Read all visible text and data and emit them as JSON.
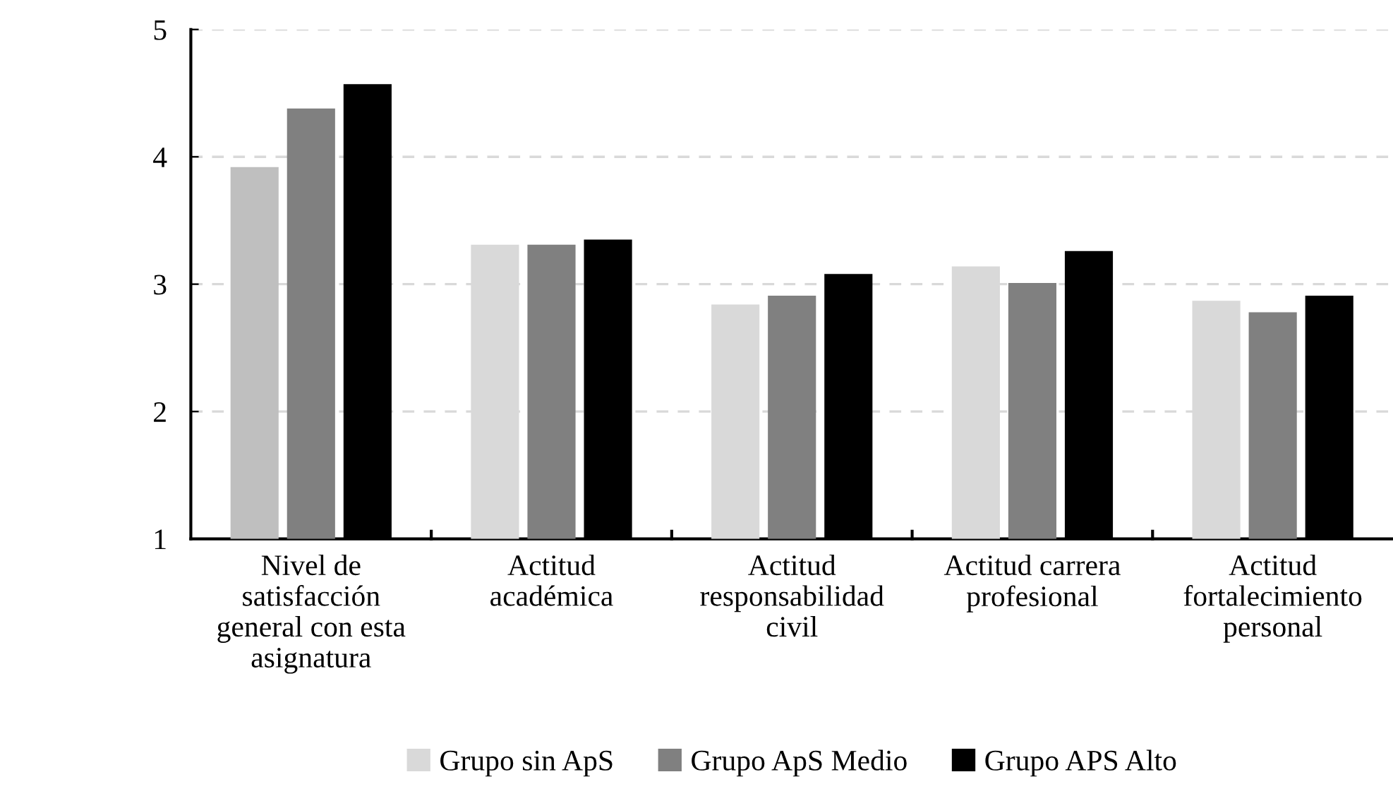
{
  "chart_data": {
    "type": "bar",
    "categories": [
      "Nivel de\nsatisfacción\ngeneral con esta\nasignatura",
      "Actitud\nacadémica",
      "Actitud\nresponsabilidad\ncivil",
      "Actitud carrera\nprofesional",
      "Actitud\nfortalecimiento\npersonal"
    ],
    "series": [
      {
        "name": "Grupo sin ApS",
        "color": "#d9d9d9",
        "colors": [
          "#bfbfbf",
          "#d9d9d9",
          "#d9d9d9",
          "#d9d9d9",
          "#d9d9d9"
        ],
        "values": [
          3.92,
          3.31,
          2.84,
          3.14,
          2.87
        ]
      },
      {
        "name": "Grupo ApS Medio",
        "color": "#808080",
        "values": [
          4.38,
          3.31,
          2.91,
          3.01,
          2.78
        ]
      },
      {
        "name": "Grupo APS Alto",
        "color": "#000000",
        "values": [
          4.57,
          3.35,
          3.08,
          3.26,
          2.91
        ]
      }
    ],
    "ylim": [
      1,
      5
    ],
    "yticks": [
      1,
      2,
      3,
      4,
      5
    ],
    "grid": "y",
    "legend": "bottom"
  }
}
